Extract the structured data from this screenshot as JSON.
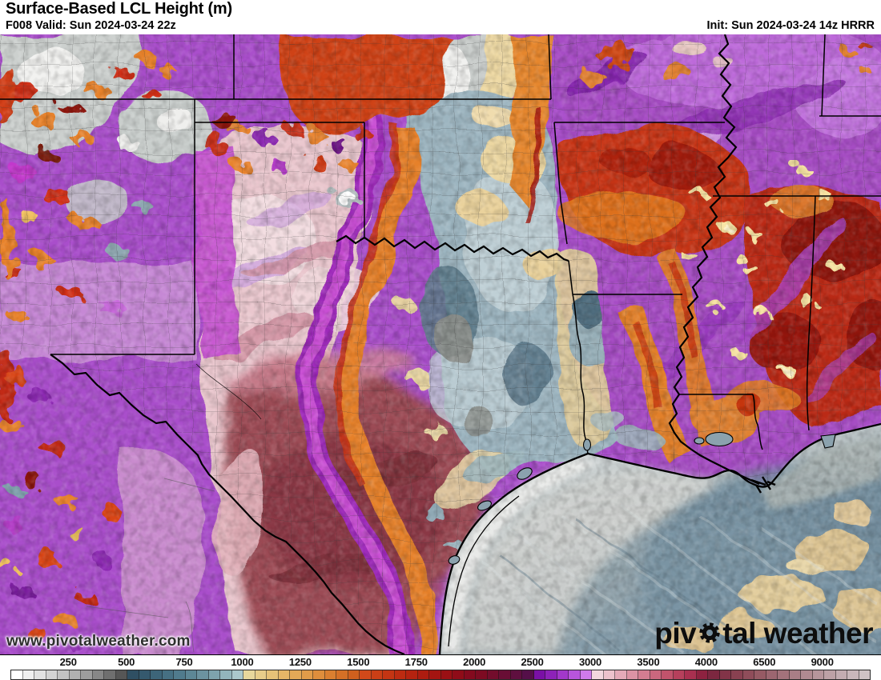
{
  "header": {
    "title": "Surface-Based LCL Height (m)",
    "valid_label": "F008 Valid: Sun 2024-03-24 22z",
    "init_label": "Init: Sun 2024-03-24 14z HRRR"
  },
  "watermark_url": "www.pivotalweather.com",
  "logo": {
    "prefix": "piv",
    "suffix": "tal weather"
  },
  "colorbar": {
    "labels": [
      "250",
      "500",
      "750",
      "1000",
      "1250",
      "1500",
      "1750",
      "2000",
      "2500",
      "3000",
      "3500",
      "4000",
      "6500",
      "9000"
    ],
    "cell_colors": [
      "#ffffff",
      "#f0f0f0",
      "#e2e2e2",
      "#d3d3d3",
      "#c3c3c3",
      "#b1b1b1",
      "#9d9d9d",
      "#878787",
      "#6f6f6f",
      "#565656",
      "#2f4f63",
      "#35596e",
      "#3d6579",
      "#467083",
      "#507b8d",
      "#5d8796",
      "#6c93a0",
      "#7ea3ad",
      "#93b5bc",
      "#abc8cc",
      "#e7d79c",
      "#e7cd8a",
      "#e6c278",
      "#e5b667",
      "#e3a957",
      "#e19c49",
      "#de8e3c",
      "#da7f30",
      "#d57026",
      "#cf601e",
      "#d1491a",
      "#cb3f16",
      "#c43513",
      "#bd2b11",
      "#b52310",
      "#ad1c10",
      "#a41511",
      "#9a1014",
      "#8f0c18",
      "#840a1e",
      "#7d0b22",
      "#730d2c",
      "#690e35",
      "#5f0f3f",
      "#550f49",
      "#7a10a6",
      "#8d22b8",
      "#a238ca",
      "#b855dc",
      "#cf7aec",
      "#f2d7de",
      "#ecc2cc",
      "#e4aab8",
      "#dc93a4",
      "#d37d91",
      "#ca677e",
      "#c1536c",
      "#b6405c",
      "#a93050",
      "#8e2240",
      "#7c2740",
      "#823448",
      "#894151",
      "#8f4d5a",
      "#965a64",
      "#9c6670",
      "#a3727b",
      "#a97e86",
      "#b08a91",
      "#b6959b",
      "#bda1a6",
      "#c3acb1",
      "#c9b7bb",
      "#cfc2c5"
    ]
  },
  "map_palette": {
    "low_gray": "#c9cdcb",
    "mid_blue": "#9db5c0",
    "tan": "#ecd7a2",
    "orange": "#e6812c",
    "red": "#c63517",
    "dark_red": "#8e140e",
    "purple": "#a94ecb",
    "magenta": "#c94fd4",
    "pale_pink": "#eac7ce",
    "maroon": "#9c4b55",
    "gulf_gray": "#cfd1cf",
    "gulf_blue": "#7e98a7"
  }
}
